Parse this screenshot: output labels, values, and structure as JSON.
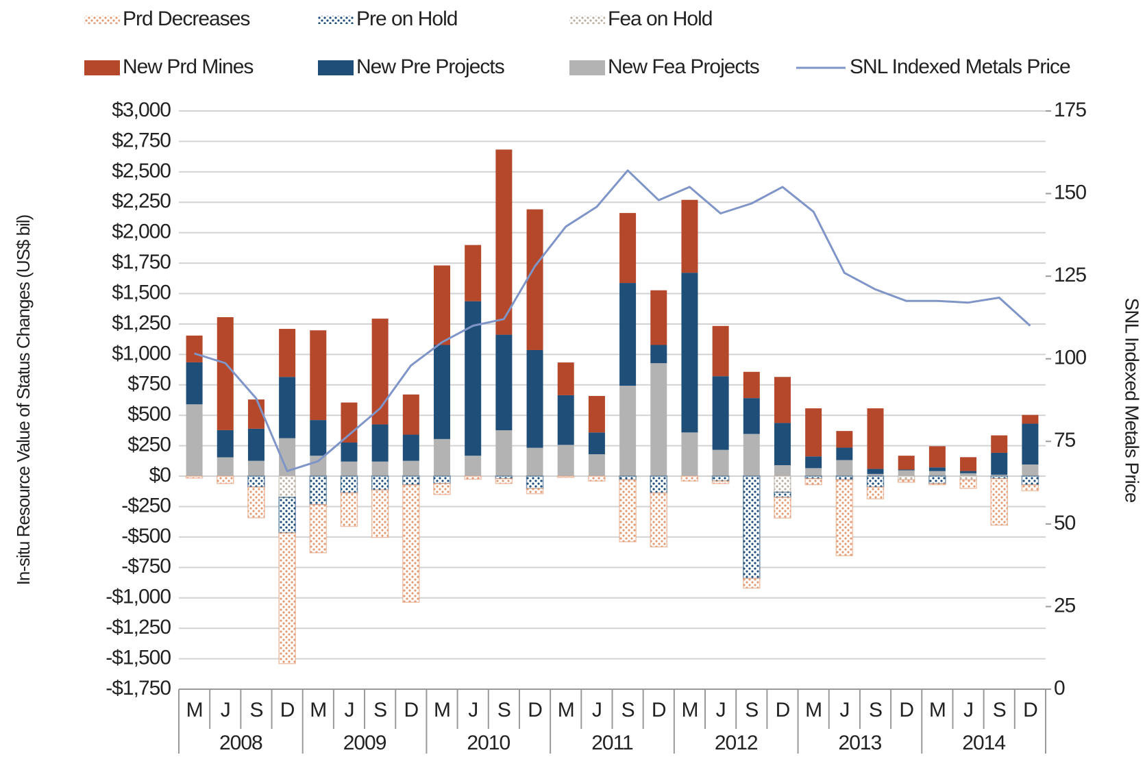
{
  "chart_data": {
    "type": "bar",
    "y_label": "In-situ Resource Value of Status Changes (US$ bil)",
    "y2_label": "SNL Indexed Metals Price",
    "categories": [
      "M",
      "J",
      "S",
      "D",
      "M",
      "J",
      "S",
      "D",
      "M",
      "J",
      "S",
      "D",
      "M",
      "J",
      "S",
      "D",
      "M",
      "J",
      "S",
      "D",
      "M",
      "J",
      "S",
      "D",
      "M",
      "J",
      "S",
      "D"
    ],
    "year_labels": [
      "2008",
      "2009",
      "2010",
      "2011",
      "2012",
      "2013",
      "2014"
    ],
    "ylim": [
      -1750,
      3000
    ],
    "yticks": [
      {
        "value": 3000,
        "label": "$3,000"
      },
      {
        "value": 2750,
        "label": "$2,750"
      },
      {
        "value": 2500,
        "label": "$2,500"
      },
      {
        "value": 2250,
        "label": "$2,250"
      },
      {
        "value": 2000,
        "label": "$2,000"
      },
      {
        "value": 1750,
        "label": "$1,750"
      },
      {
        "value": 1500,
        "label": "$1,500"
      },
      {
        "value": 1250,
        "label": "$1,250"
      },
      {
        "value": 1000,
        "label": "$1,000"
      },
      {
        "value": 750,
        "label": "$750"
      },
      {
        "value": 500,
        "label": "$500"
      },
      {
        "value": 250,
        "label": "$250"
      },
      {
        "value": 0,
        "label": "$0"
      },
      {
        "value": -250,
        "label": "-$250"
      },
      {
        "value": -500,
        "label": "-$500"
      },
      {
        "value": -750,
        "label": "-$750"
      },
      {
        "value": -1000,
        "label": "-$1,000"
      },
      {
        "value": -1250,
        "label": "-$1,250"
      },
      {
        "value": -1500,
        "label": "-$1,500"
      },
      {
        "value": -1750,
        "label": "-$1,750"
      }
    ],
    "y2lim": [
      0,
      175
    ],
    "y2ticks": [
      0,
      25,
      50,
      75,
      100,
      125,
      150,
      175
    ],
    "grid": true,
    "series": [
      {
        "name": "Prd Decreases",
        "color": "#e39b74",
        "pattern": "hatch",
        "values": [
          -15,
          -60,
          -252,
          -1073,
          -395,
          -275,
          -389,
          -964,
          -90,
          -25,
          -40,
          -42,
          -10,
          -40,
          -509,
          -443,
          -40,
          -20,
          -80,
          -170,
          -50,
          -623,
          -96,
          -20,
          -10,
          -70,
          -382,
          -48
        ]
      },
      {
        "name": "Pre on Hold",
        "color": "#1f4e79",
        "pattern": "hatch",
        "values": [
          0,
          0,
          -90,
          -293,
          -234,
          -138,
          -114,
          -72,
          -60,
          0,
          -20,
          -102,
          0,
          0,
          -30,
          -138,
          0,
          -40,
          -840,
          -42,
          -20,
          -30,
          -90,
          0,
          -60,
          0,
          -20,
          -72
        ]
      },
      {
        "name": "Fea on Hold",
        "color": "#b8aea4",
        "pattern": "hatch",
        "values": [
          0,
          0,
          0,
          -174,
          0,
          0,
          0,
          0,
          0,
          0,
          0,
          0,
          0,
          0,
          0,
          0,
          0,
          0,
          0,
          -132,
          0,
          0,
          0,
          -30,
          0,
          -30,
          0,
          0
        ]
      },
      {
        "name": "New Prd Mines",
        "color": "#b5472a",
        "values": [
          220,
          928,
          240,
          395,
          737,
          329,
          869,
          330,
          653,
          462,
          1521,
          1156,
          269,
          300,
          575,
          449,
          599,
          413,
          216,
          378,
          395,
          137,
          497,
          114,
          174,
          114,
          143,
          72
        ]
      },
      {
        "name": "New Pre Projects",
        "color": "#1f4e79",
        "values": [
          345,
          223,
          264,
          503,
          293,
          156,
          305,
          215,
          773,
          1269,
          785,
          803,
          408,
          179,
          844,
          150,
          1312,
          605,
          294,
          347,
          96,
          102,
          42,
          6,
          30,
          18,
          180,
          335
        ]
      },
      {
        "name": "New Fea Projects",
        "color": "#b3b3b3",
        "values": [
          590,
          155,
          126,
          312,
          168,
          120,
          120,
          126,
          305,
          168,
          377,
          233,
          257,
          180,
          743,
          928,
          359,
          216,
          347,
          90,
          66,
          132,
          18,
          48,
          42,
          24,
          12,
          96
        ]
      },
      {
        "name": "SNL Indexed Metals Price",
        "color": "#7f95c8",
        "type": "line",
        "axis": "y2",
        "values": [
          101.6,
          98.7,
          88,
          66,
          69,
          77,
          85,
          98,
          105,
          110,
          112,
          128,
          140,
          146,
          157,
          148,
          152,
          144,
          147,
          152,
          144.5,
          126,
          121,
          117.5,
          117.5,
          117,
          118.5,
          110
        ]
      }
    ]
  }
}
